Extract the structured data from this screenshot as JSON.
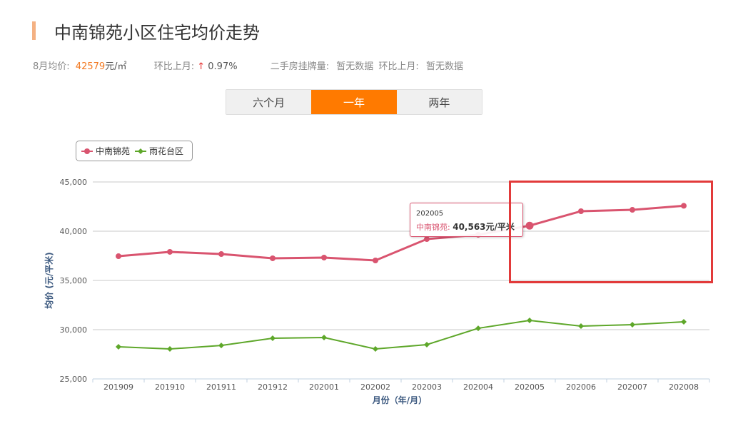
{
  "header": {
    "title": "中南锦苑小区住宅均价走势"
  },
  "stats": {
    "avg_label": "8月均价:",
    "avg_value": "42579",
    "avg_unit": "元/㎡",
    "mom_label": "环比上月:",
    "mom_arrow": "↑",
    "mom_value": "0.97%",
    "listing_label": "二手房挂牌量:",
    "listing_value": "暂无数据",
    "listing_mom_label": "环比上月:",
    "listing_mom_value": "暂无数据"
  },
  "tabs": [
    {
      "label": "六个月",
      "active": false
    },
    {
      "label": "一年",
      "active": true
    },
    {
      "label": "两年",
      "active": false
    }
  ],
  "tooltip": {
    "date": "202005",
    "series": "中南锦苑:",
    "value": "40,563元/平米"
  },
  "chart_data": {
    "type": "line",
    "xlabel": "月份（年/月）",
    "ylabel": "均价 (元/平米)",
    "ylim": [
      25000,
      45000
    ],
    "yticks": [
      "25,000",
      "30,000",
      "35,000",
      "40,000",
      "45,000"
    ],
    "grid": true,
    "legend": "top-left",
    "categories": [
      "201909",
      "201910",
      "201911",
      "201912",
      "202001",
      "202002",
      "202003",
      "202004",
      "202005",
      "202006",
      "202007",
      "202008"
    ],
    "series": [
      {
        "name": "中南锦苑",
        "color": "#d9546f",
        "marker": "circle",
        "values": [
          37460,
          37900,
          37680,
          37250,
          37320,
          37030,
          39200,
          39640,
          40563,
          42030,
          42170,
          42579
        ]
      },
      {
        "name": "雨花台区",
        "color": "#5ea72a",
        "marker": "diamond",
        "values": [
          28260,
          28040,
          28400,
          29130,
          29200,
          28040,
          28480,
          30140,
          30940,
          30360,
          30510,
          30800
        ]
      }
    ]
  }
}
